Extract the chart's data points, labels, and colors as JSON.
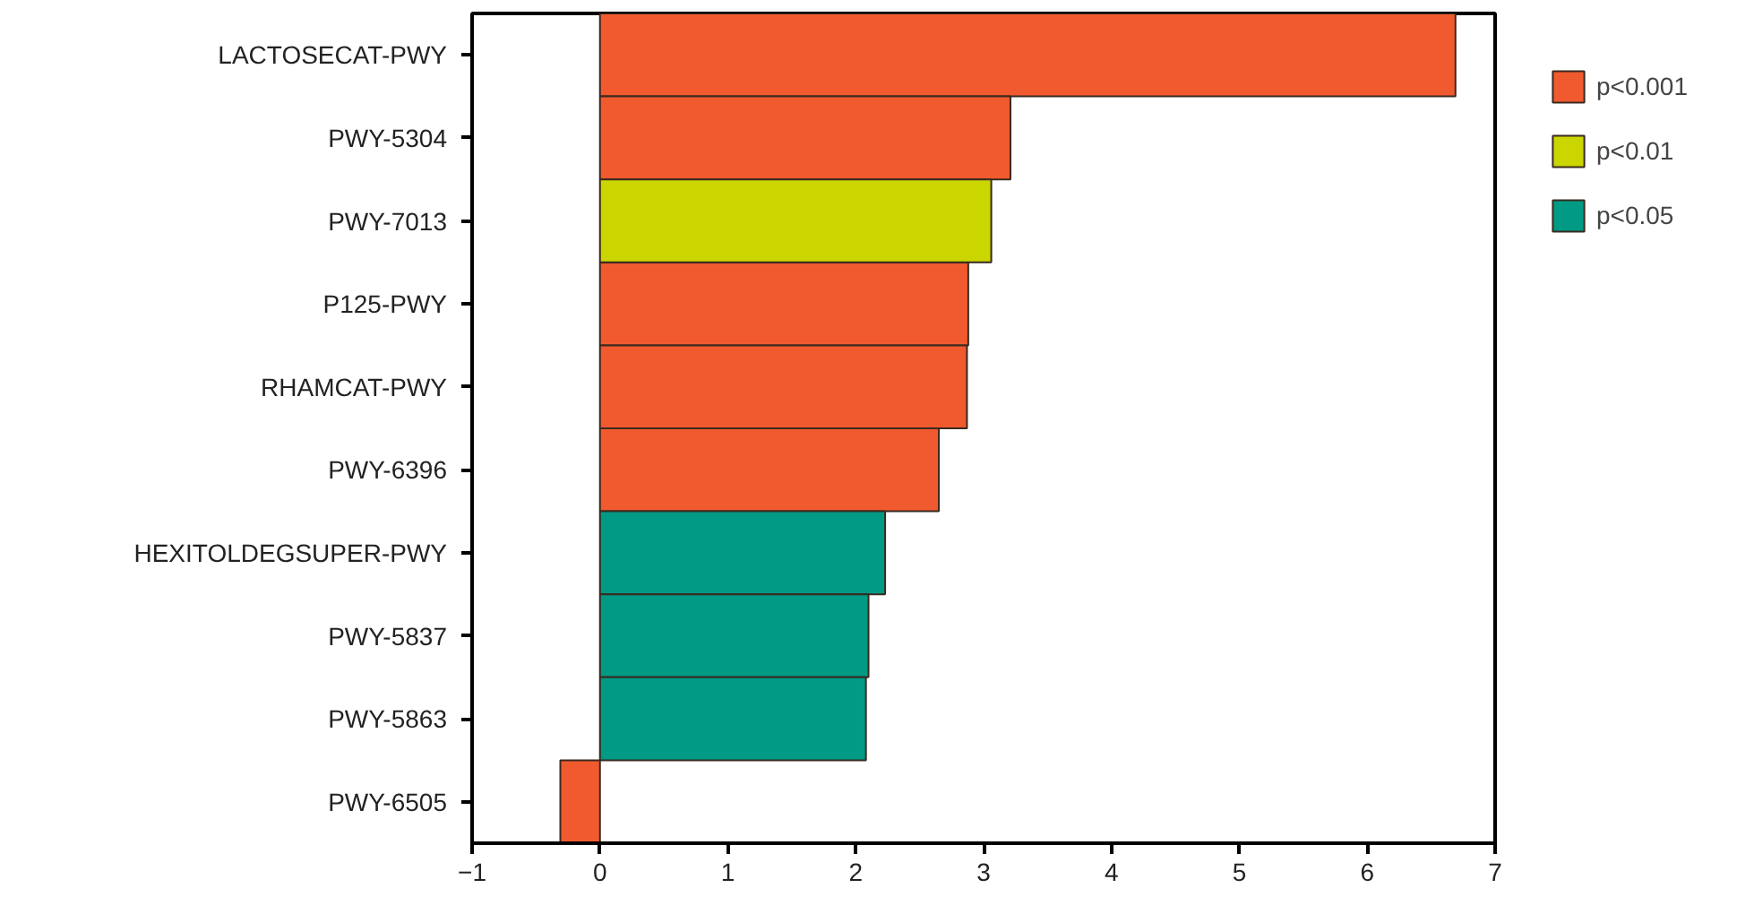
{
  "chart_data": {
    "type": "bar",
    "orientation": "horizontal",
    "categories": [
      "LACTOSECAT-PWY",
      "PWY-5304",
      "PWY-7013",
      "P125-PWY",
      "RHAMCAT-PWY",
      "PWY-6396",
      "HEXITOLDEGSUPER-PWY",
      "PWY-5837",
      "PWY-5863",
      "PWY-6505"
    ],
    "series": [
      {
        "name": "p<0.001",
        "color": "#f15a2e",
        "values": [
          6.69,
          3.21,
          null,
          2.88,
          2.87,
          2.65,
          null,
          null,
          null,
          -0.31
        ]
      },
      {
        "name": "p<0.01",
        "color": "#cbd600",
        "values": [
          null,
          null,
          3.06,
          null,
          null,
          null,
          null,
          null,
          null,
          null
        ]
      },
      {
        "name": "p<0.05",
        "color": "#009a85",
        "values": [
          null,
          null,
          null,
          null,
          null,
          null,
          2.23,
          2.1,
          2.08,
          null
        ]
      }
    ],
    "xlim": [
      -1,
      7
    ],
    "xticks": [
      -1,
      0,
      1,
      2,
      3,
      4,
      5,
      6,
      7
    ],
    "grid": false,
    "legend": "right"
  }
}
